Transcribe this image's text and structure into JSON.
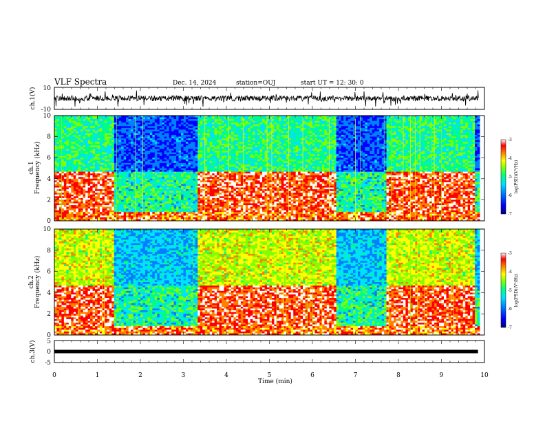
{
  "header": {
    "title": "VLF Spectra",
    "date": "Dec. 14, 2024",
    "station": "station=OUJ",
    "start": "start  UT  =   12: 30: 0"
  },
  "colors": {
    "colorbar": [
      "#000080",
      "#0000ff",
      "#0080ff",
      "#00e0ff",
      "#00ff80",
      "#80ff00",
      "#ffff00",
      "#ff8000",
      "#ff0000",
      "#ffffff"
    ]
  },
  "chart_data": [
    {
      "type": "line",
      "id": "waveform-ch1",
      "ylabel": "ch.1(V)",
      "ylim": [
        -10,
        10
      ],
      "yticks": [
        "10",
        "-10"
      ]
    },
    {
      "type": "heatmap",
      "id": "spectrogram-ch1",
      "ylabel_top": "ch.1",
      "ylabel": "Frequency  (kHz)",
      "ylim": [
        0,
        10
      ],
      "yticks": [
        "0",
        "2",
        "4",
        "6",
        "8",
        "10"
      ],
      "xlim": [
        0,
        10
      ],
      "colorbar": {
        "label": "log(PSD)(V²/Hz)",
        "range": [
          -7,
          -3
        ],
        "ticks": [
          "-3",
          "-4",
          "-5",
          "-6",
          "-7"
        ]
      },
      "segments_min": [
        [
          0,
          1.4,
          "active"
        ],
        [
          1.4,
          3.35,
          "quiet"
        ],
        [
          3.35,
          6.55,
          "active"
        ],
        [
          6.55,
          7.7,
          "quiet"
        ],
        [
          7.7,
          9.8,
          "active"
        ]
      ]
    },
    {
      "type": "heatmap",
      "id": "spectrogram-ch2",
      "ylabel_top": "ch.2",
      "ylabel": "Frequency  (kHz)",
      "ylim": [
        0,
        10
      ],
      "yticks": [
        "0",
        "2",
        "4",
        "6",
        "8",
        "10"
      ],
      "xlim": [
        0,
        10
      ],
      "colorbar": {
        "label": "log(PSD)(V²/Hz)",
        "range": [
          -7,
          -3
        ],
        "ticks": [
          "-3",
          "-4",
          "-5",
          "-6",
          "-7"
        ]
      },
      "segments_min": [
        [
          0,
          1.4,
          "active"
        ],
        [
          1.4,
          3.35,
          "quiet"
        ],
        [
          3.35,
          6.55,
          "active"
        ],
        [
          6.55,
          7.7,
          "quiet"
        ],
        [
          7.7,
          9.8,
          "active"
        ]
      ]
    },
    {
      "type": "line",
      "id": "waveform-ch3",
      "ylabel": "ch.3(V)",
      "ylim": [
        -5,
        5
      ],
      "yticks": [
        "5",
        "0",
        "-5"
      ],
      "series": [
        {
          "x": [
            0,
            9.85
          ],
          "y": [
            0,
            0
          ]
        }
      ]
    }
  ],
  "xaxis": {
    "label": "Time  (min)",
    "ticks": [
      "0",
      "1",
      "2",
      "3",
      "4",
      "5",
      "6",
      "7",
      "8",
      "9",
      "10"
    ],
    "xlim": [
      0,
      10
    ]
  }
}
